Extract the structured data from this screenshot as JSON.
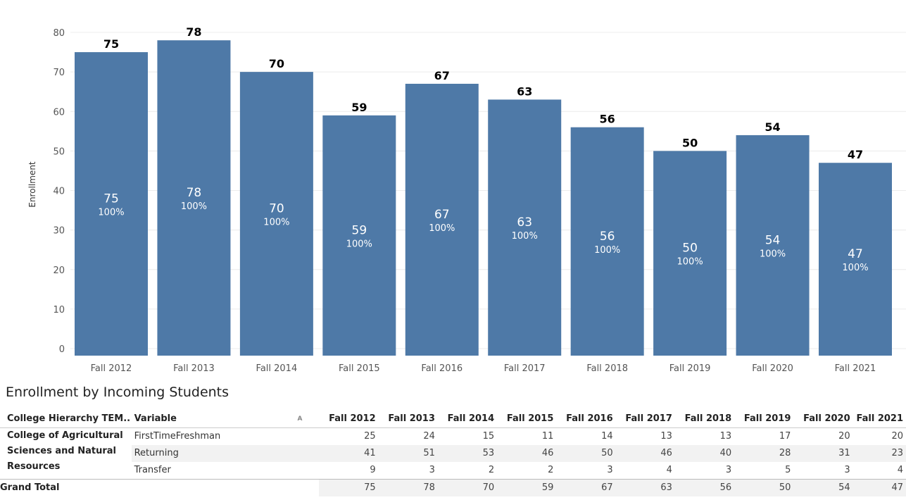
{
  "chart_data": {
    "type": "bar",
    "ylabel": "Enrollment",
    "ylim": [
      0,
      80
    ],
    "yticks": [
      0,
      10,
      20,
      30,
      40,
      50,
      60,
      70,
      80
    ],
    "categories": [
      "Fall 2012",
      "Fall 2013",
      "Fall 2014",
      "Fall 2015",
      "Fall 2016",
      "Fall 2017",
      "Fall 2018",
      "Fall 2019",
      "Fall 2020",
      "Fall 2021"
    ],
    "values": [
      75,
      78,
      70,
      59,
      67,
      63,
      56,
      50,
      54,
      47
    ],
    "percent_labels": [
      "100%",
      "100%",
      "100%",
      "100%",
      "100%",
      "100%",
      "100%",
      "100%",
      "100%",
      "100%"
    ],
    "bar_color": "#4e79a7",
    "grid": true
  },
  "table": {
    "title": "Enrollment by Incoming Students",
    "header_group": "College Hierarchy TEM..",
    "header_variable": "Variable",
    "sort_icon": "sort-icon",
    "columns": [
      "Fall 2012",
      "Fall 2013",
      "Fall 2014",
      "Fall 2015",
      "Fall 2016",
      "Fall 2017",
      "Fall 2018",
      "Fall 2019",
      "Fall 2020",
      "Fall 2021"
    ],
    "college": "College of Agricultural Sciences and Natural Resources",
    "rows": [
      {
        "variable": "FirstTimeFreshman",
        "values": [
          "25",
          "24",
          "15",
          "11",
          "14",
          "13",
          "13",
          "17",
          "20",
          "20"
        ]
      },
      {
        "variable": "Returning",
        "values": [
          "41",
          "51",
          "53",
          "46",
          "50",
          "46",
          "40",
          "28",
          "31",
          "23"
        ]
      },
      {
        "variable": "Transfer",
        "values": [
          "9",
          "3",
          "2",
          "2",
          "3",
          "4",
          "3",
          "5",
          "3",
          "4"
        ]
      }
    ],
    "grand_total_label": "Grand Total",
    "grand_total": [
      "75",
      "78",
      "70",
      "59",
      "67",
      "63",
      "56",
      "50",
      "54",
      "47"
    ]
  }
}
